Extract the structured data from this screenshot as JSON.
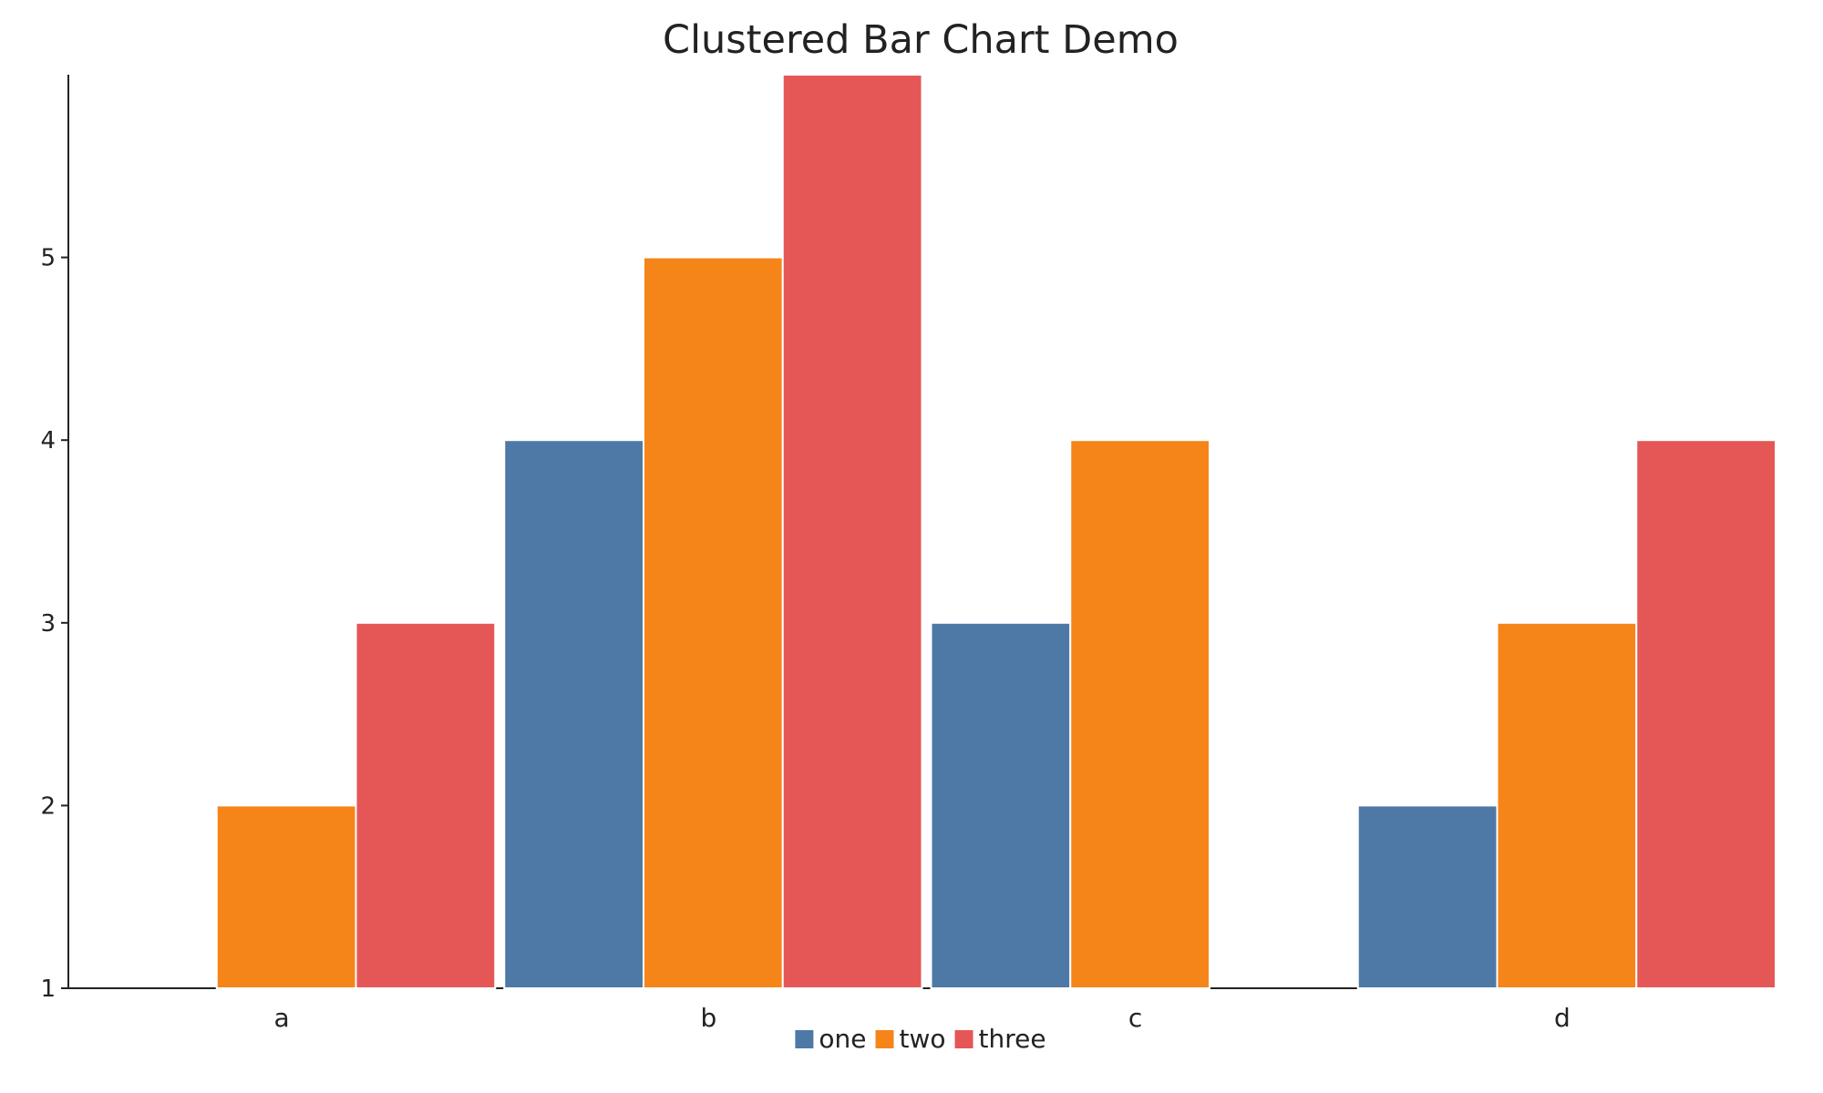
{
  "chart_data": {
    "type": "bar",
    "title": "Clustered Bar Chart Demo",
    "xlabel": "",
    "ylabel": "",
    "categories": [
      "a",
      "b",
      "c",
      "d"
    ],
    "series": [
      {
        "name": "one",
        "color": "#4e79a7",
        "values": [
          null,
          4,
          3,
          2
        ]
      },
      {
        "name": "two",
        "color": "#f58518",
        "values": [
          2,
          5,
          4,
          3
        ]
      },
      {
        "name": "three",
        "color": "#e45756",
        "values": [
          3,
          6,
          null,
          4
        ]
      }
    ],
    "ylim": [
      1,
      6
    ],
    "yticks": [
      "1",
      "2",
      "3",
      "4",
      "5"
    ],
    "grid": false,
    "legend_position": "bottom-center"
  }
}
